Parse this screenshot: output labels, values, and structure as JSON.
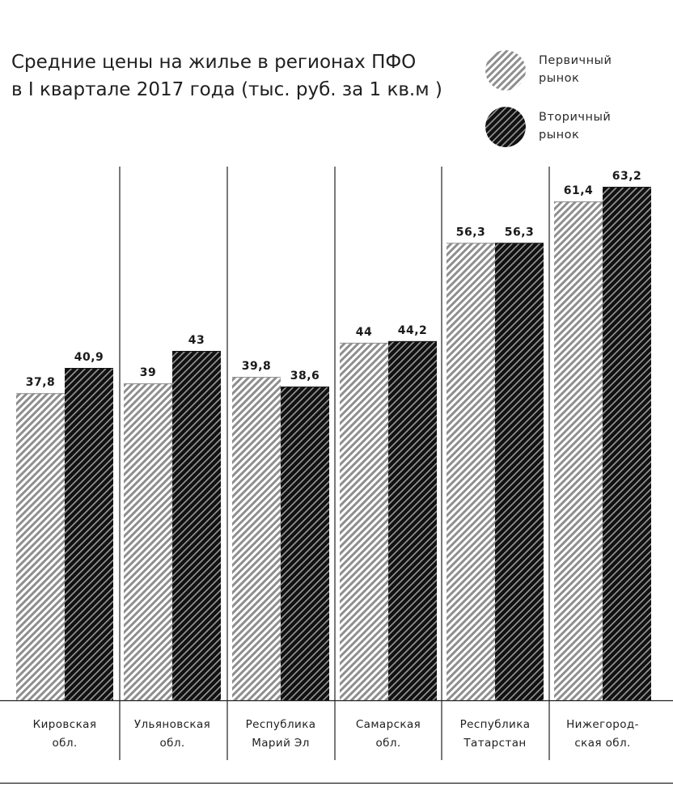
{
  "header": {
    "title_line1": "Средние цены на жилье в регионах ПФО",
    "title_line2": "в I квартале 2017 года (тыс. руб. за 1 кв.м )"
  },
  "legend": [
    {
      "line1": "Первичный",
      "line2": "рынок"
    },
    {
      "line1": "Вторичный",
      "line2": "рынок"
    }
  ],
  "chart_data": {
    "type": "bar",
    "title": "Средние цены на жилье в регионах ПФО в I квартале 2017 года (тыс. руб. за 1 кв.м )",
    "xlabel": "",
    "ylabel": "",
    "ylim": [
      0,
      66
    ],
    "grid": false,
    "legend_position": "top-right",
    "categories": [
      [
        "Кировская",
        "обл."
      ],
      [
        "Ульяновская",
        "обл."
      ],
      [
        "Республика",
        "Марий Эл"
      ],
      [
        "Самарская",
        "обл."
      ],
      [
        "Республика",
        "Татарстан"
      ],
      [
        "Нижегород-",
        "ская обл."
      ]
    ],
    "series": [
      {
        "name": "Первичный рынок",
        "values": [
          37.8,
          39,
          39.8,
          44,
          56.3,
          61.4
        ],
        "labels": [
          "37,8",
          "39",
          "39,8",
          "44",
          "56,3",
          "61,4"
        ],
        "color": "#9a9a9a"
      },
      {
        "name": "Вторичный рынок",
        "values": [
          40.9,
          43,
          38.6,
          44.2,
          56.3,
          63.2
        ],
        "labels": [
          "40,9",
          "43",
          "38,6",
          "44,2",
          "56,3",
          "63,2"
        ],
        "color": "#1a1a1a"
      }
    ]
  }
}
